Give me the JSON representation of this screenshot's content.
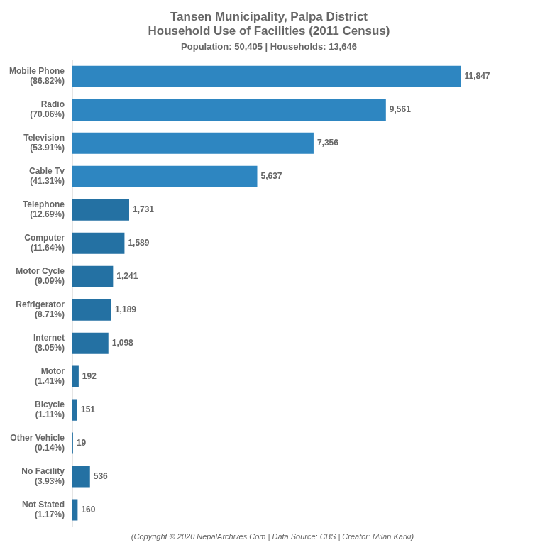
{
  "chart_data": {
    "type": "bar",
    "orientation": "horizontal",
    "title": "Tansen Municipality, Palpa District\nHousehold Use of Facilities (2011 Census)",
    "subtitle": "Population: 50,405 | Households: 13,646",
    "annotations": [
      "(Copyright © 2020 NepalArchives.Com | Data Source: CBS | Creator: Milan Karki)"
    ],
    "categories": [
      "Mobile Phone\n(86.82%)",
      "Radio\n(70.06%)",
      "Television\n(53.91%)",
      "Cable Tv\n(41.31%)",
      "Telephone\n(12.69%)",
      "Computer\n(11.64%)",
      "Motor Cycle\n(9.09%)",
      "Refrigerator\n(8.71%)",
      "Internet\n(8.05%)",
      "Motor\n(1.41%)",
      "Bicycle\n(1.11%)",
      "Other Vehicle\n(0.14%)",
      "No Facility\n(3.93%)",
      "Not Stated\n(1.17%)"
    ],
    "values": [
      11847,
      9561,
      7356,
      5637,
      1731,
      1589,
      1241,
      1189,
      1098,
      192,
      151,
      19,
      536,
      160
    ],
    "value_labels": [
      "11,847",
      "9,561",
      "7,356",
      "5,637",
      "1,731",
      "1,589",
      "1,241",
      "1,189",
      "1,098",
      "192",
      "151",
      "19",
      "536",
      "160"
    ],
    "colors": [
      "#2e86c1",
      "#2e86c1",
      "#2e86c1",
      "#2e86c1",
      "#2471a3",
      "#2471a3",
      "#2471a3",
      "#2471a3",
      "#2471a3",
      "#2471a3",
      "#2471a3",
      "#2471a3",
      "#2471a3",
      "#2471a3"
    ],
    "xlim": [
      0,
      13979.46
    ],
    "grid": false,
    "data_labels": true,
    "tick_labels": "y"
  }
}
